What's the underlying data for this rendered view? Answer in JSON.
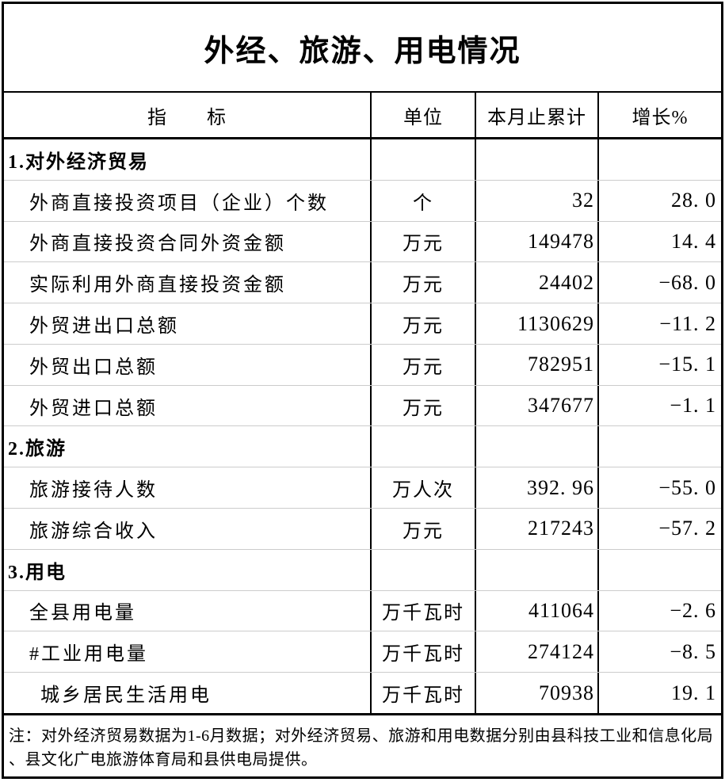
{
  "title": "外经、旅游、用电情况",
  "columns": {
    "indicator": "指　　标",
    "unit": "单位",
    "cumulative": "本月止累计",
    "growth": "增长%"
  },
  "rows": [
    {
      "label": "1.对外经济贸易",
      "unit": "",
      "cumulative": "",
      "growth": "",
      "type": "section"
    },
    {
      "label": "外商直接投资项目（企业）个数",
      "unit": "个",
      "cumulative": "32",
      "growth": "28. 0",
      "type": "data"
    },
    {
      "label": "外商直接投资合同外资金额",
      "unit": "万元",
      "cumulative": "149478",
      "growth": "14. 4",
      "type": "data"
    },
    {
      "label": "实际利用外商直接投资金额",
      "unit": "万元",
      "cumulative": "24402",
      "growth": "−68. 0",
      "type": "data"
    },
    {
      "label": "外贸进出口总额",
      "unit": "万元",
      "cumulative": "1130629",
      "growth": "−11. 2",
      "type": "data"
    },
    {
      "label": "外贸出口总额",
      "unit": "万元",
      "cumulative": "782951",
      "growth": "−15. 1",
      "type": "data"
    },
    {
      "label": "外贸进口总额",
      "unit": "万元",
      "cumulative": "347677",
      "growth": "−1. 1",
      "type": "data"
    },
    {
      "label": "2.旅游",
      "unit": "",
      "cumulative": "",
      "growth": "",
      "type": "section"
    },
    {
      "label": "旅游接待人数",
      "unit": "万人次",
      "cumulative": "392. 96",
      "growth": "−55. 0",
      "type": "data"
    },
    {
      "label": "旅游综合收入",
      "unit": "万元",
      "cumulative": "217243",
      "growth": "−57. 2",
      "type": "data"
    },
    {
      "label": "3.用电",
      "unit": "",
      "cumulative": "",
      "growth": "",
      "type": "section"
    },
    {
      "label": "全县用电量",
      "unit": "万千瓦时",
      "cumulative": "411064",
      "growth": "−2. 6",
      "type": "data"
    },
    {
      "label": "#工业用电量",
      "unit": "万千瓦时",
      "cumulative": "274124",
      "growth": "−8. 5",
      "type": "data"
    },
    {
      "label": "城乡居民生活用电",
      "unit": "万千瓦时",
      "cumulative": "70938",
      "growth": "19. 1",
      "type": "data"
    }
  ],
  "footer": {
    "lines": [
      "注：对外经济贸易数据为1-6月数据；对外经济贸易、旅游和用电数据分别由县科技工业和信息化局",
      "、县文化广电旅游体育局和县供电局提供。"
    ]
  }
}
